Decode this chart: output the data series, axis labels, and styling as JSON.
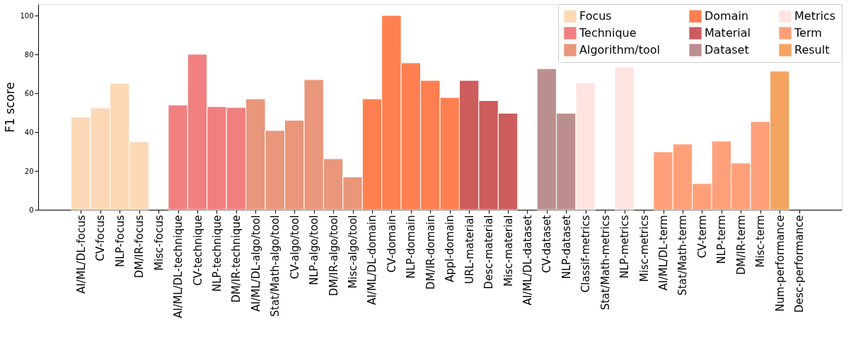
{
  "chart_data": {
    "type": "bar",
    "ylabel": "F1 score",
    "categories": [
      "AI/ML/DL-focus",
      "CV-focus",
      "NLP-focus",
      "DM/IR-focus",
      "Misc-focus",
      "AI/ML/DL-technique",
      "CV-technique",
      "NLP-technique",
      "DM/IR-technique",
      "AI/ML/DL-algo/tool",
      "Stat/Math-algo/tool",
      "CV-algo/tool",
      "NLP-algo/tool",
      "DM/IR-algo/tool",
      "Misc-algo/tool",
      "AI/ML/DL-domain",
      "CV-domain",
      "NLP-domain",
      "DM/IR-domain",
      "Appl-domain",
      "URL-material",
      "Desc-material",
      "Misc-material",
      "AI/ML/DL-dataset",
      "CV-dataset",
      "NLP-dataset",
      "Classif-metrics",
      "Stat/Math-metrics",
      "NLP-metrics",
      "Misc-metrics",
      "AI/ML/DL-term",
      "Stat/Math-term",
      "CV-term",
      "NLP-term",
      "DM/IR-term",
      "Misc-term",
      "Num-performance",
      "Desc-performance"
    ],
    "series": [
      {
        "name": "Focus",
        "color": "#fdd8b6",
        "values": [
          47.8,
          52.5,
          65.2,
          35.1,
          0,
          null,
          null,
          null,
          null,
          null,
          null,
          null,
          null,
          null,
          null,
          null,
          null,
          null,
          null,
          null,
          null,
          null,
          null,
          null,
          null,
          null,
          null,
          null,
          null,
          null,
          null,
          null,
          null,
          null,
          null,
          null,
          null,
          null
        ]
      },
      {
        "name": "Technique",
        "color": "#f08080",
        "values": [
          null,
          null,
          null,
          null,
          null,
          54,
          80.2,
          53.2,
          52.8,
          null,
          null,
          null,
          null,
          null,
          null,
          null,
          null,
          null,
          null,
          null,
          null,
          null,
          null,
          null,
          null,
          null,
          null,
          null,
          null,
          null,
          null,
          null,
          null,
          null,
          null,
          null,
          null,
          null
        ]
      },
      {
        "name": "Algorithm/tool",
        "color": "#e9967a",
        "values": [
          null,
          null,
          null,
          null,
          null,
          null,
          null,
          null,
          null,
          57.2,
          40.9,
          46.2,
          67.1,
          26.3,
          16.9,
          null,
          null,
          null,
          null,
          null,
          null,
          null,
          null,
          null,
          null,
          null,
          null,
          null,
          null,
          null,
          null,
          null,
          null,
          null,
          null,
          null,
          null,
          null
        ]
      },
      {
        "name": "Domain",
        "color": "#ff7f50",
        "values": [
          null,
          null,
          null,
          null,
          null,
          null,
          null,
          null,
          null,
          null,
          null,
          null,
          null,
          null,
          null,
          57.2,
          100.2,
          75.8,
          66.7,
          57.9,
          null,
          null,
          null,
          null,
          null,
          null,
          null,
          null,
          null,
          null,
          null,
          null,
          null,
          null,
          null,
          null,
          null,
          null
        ]
      },
      {
        "name": "Material",
        "color": "#cd5c5c",
        "values": [
          null,
          null,
          null,
          null,
          null,
          null,
          null,
          null,
          null,
          null,
          null,
          null,
          null,
          null,
          null,
          null,
          null,
          null,
          null,
          null,
          66.7,
          56.3,
          49.8,
          null,
          null,
          null,
          null,
          null,
          null,
          null,
          null,
          null,
          null,
          null,
          null,
          null,
          null,
          null
        ]
      },
      {
        "name": "Dataset",
        "color": "#bc8f8f",
        "values": [
          null,
          null,
          null,
          null,
          null,
          null,
          null,
          null,
          null,
          null,
          null,
          null,
          null,
          null,
          null,
          null,
          null,
          null,
          null,
          null,
          null,
          null,
          null,
          0,
          72.8,
          49.8,
          null,
          null,
          null,
          null,
          null,
          null,
          null,
          null,
          null,
          null,
          null,
          null
        ]
      },
      {
        "name": "Metrics",
        "color": "#ffe4e1",
        "values": [
          null,
          null,
          null,
          null,
          null,
          null,
          null,
          null,
          null,
          null,
          null,
          null,
          null,
          null,
          null,
          null,
          null,
          null,
          null,
          null,
          null,
          null,
          null,
          null,
          null,
          null,
          65.5,
          0,
          73.6,
          0,
          null,
          null,
          null,
          null,
          null,
          null,
          null,
          null
        ]
      },
      {
        "name": "Term",
        "color": "#ffa07a",
        "values": [
          null,
          null,
          null,
          null,
          null,
          null,
          null,
          null,
          null,
          null,
          null,
          null,
          null,
          null,
          null,
          null,
          null,
          null,
          null,
          null,
          null,
          null,
          null,
          null,
          null,
          null,
          null,
          null,
          null,
          null,
          29.9,
          33.9,
          13.5,
          35.4,
          24.1,
          45.5,
          null,
          null
        ]
      },
      {
        "name": "Result",
        "color": "#f4a460",
        "values": [
          null,
          null,
          null,
          null,
          null,
          null,
          null,
          null,
          null,
          null,
          null,
          null,
          null,
          null,
          null,
          null,
          null,
          null,
          null,
          null,
          null,
          null,
          null,
          null,
          null,
          null,
          null,
          null,
          null,
          null,
          null,
          null,
          null,
          null,
          null,
          null,
          71.5,
          0
        ]
      }
    ],
    "ylim": [
      0,
      106
    ],
    "yticks": [
      0,
      20,
      40,
      60,
      80,
      100
    ],
    "grid": false,
    "legend": "top right"
  }
}
